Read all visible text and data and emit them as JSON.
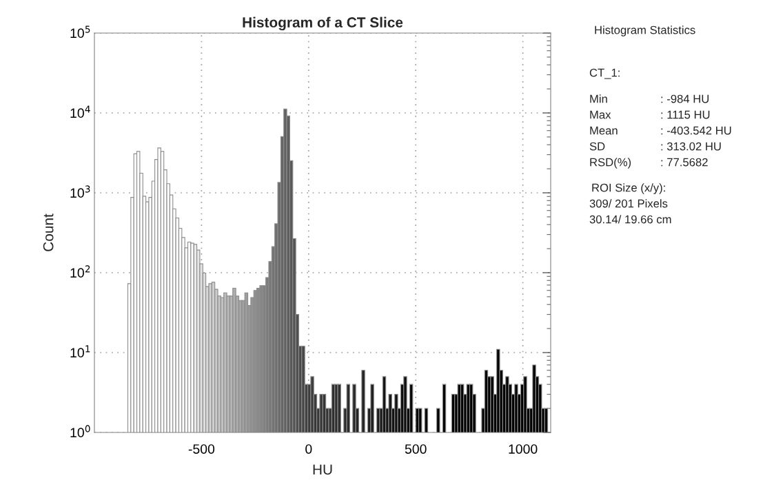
{
  "chart_data": {
    "type": "histogram",
    "title": "Histogram of a CT Slice",
    "xlabel": "HU",
    "ylabel": "Count",
    "bins": [
      -844,
      -830,
      -816,
      -802,
      -788,
      -774,
      -760,
      -746,
      -732,
      -718,
      -704,
      -690,
      -676,
      -662,
      -648,
      -634,
      -620,
      -606,
      -592,
      -578,
      -564,
      -550,
      -536,
      -522,
      -508,
      -494,
      -480,
      -466,
      -452,
      -438,
      -424,
      -410,
      -396,
      -382,
      -368,
      -354,
      -340,
      -326,
      -312,
      -298,
      -284,
      -270,
      -256,
      -242,
      -228,
      -214,
      -200,
      -186,
      -172,
      -158,
      -144,
      -130,
      -116,
      -102,
      -88,
      -74,
      -60,
      -46,
      -32,
      -18,
      -4,
      10,
      24,
      38,
      52,
      66,
      80,
      94,
      108,
      122,
      136,
      150,
      164,
      178,
      192,
      206,
      220,
      234,
      248,
      262,
      276,
      290,
      304,
      318,
      332,
      346,
      360,
      374,
      388,
      402,
      416,
      430,
      444,
      458,
      472,
      486,
      500,
      514,
      528,
      542,
      556,
      570,
      584,
      598,
      612,
      626,
      640,
      654,
      668,
      682,
      696,
      710,
      724,
      738,
      752,
      766,
      780,
      794,
      808,
      822,
      836,
      850,
      864,
      878,
      892,
      906,
      920,
      934,
      948,
      962,
      976,
      990,
      1004,
      1018,
      1032,
      1046,
      1060,
      1074,
      1088,
      1102,
      1116
    ],
    "values": [
      73,
      877,
      3080,
      3300,
      1760,
      908,
      770,
      877,
      1400,
      2610,
      3640,
      3300,
      1940,
      1300,
      940,
      631,
      484,
      360,
      276,
      205,
      242,
      234,
      226,
      192,
      129,
      99,
      67,
      73,
      76,
      62,
      51,
      49,
      56,
      51,
      51,
      64,
      51,
      45,
      45,
      56,
      39,
      49,
      60,
      64,
      69,
      69,
      87,
      138,
      212,
      410,
      1350,
      5070,
      11200,
      9180,
      2530,
      267,
      30,
      12,
      12,
      4,
      4,
      5,
      3,
      2,
      3,
      3,
      2,
      2,
      4,
      4,
      4,
      null,
      2,
      4,
      null,
      4,
      2,
      null,
      6,
      null,
      2,
      4,
      null,
      2,
      2,
      5,
      2,
      3,
      2,
      3,
      2,
      4,
      5,
      2,
      4,
      null,
      2,
      2,
      null,
      2,
      null,
      null,
      null,
      2,
      null,
      4,
      null,
      null,
      3,
      3,
      4,
      4,
      3,
      4,
      4,
      3,
      null,
      null,
      2,
      6,
      5,
      5,
      3,
      11,
      6,
      4,
      5,
      4,
      3,
      4,
      3,
      4,
      5,
      2,
      2,
      7,
      5,
      4,
      2,
      2
    ],
    "colors": [
      "#ffffff",
      "#ffffff",
      "#ffffff",
      "#ffffff",
      "#ffffff",
      "#ffffff",
      "#ffffff",
      "#ffffff",
      "#ffffff",
      "#ffffff",
      "#ffffff",
      "#ffffff",
      "#ffffff",
      "#ffffff",
      "#ffffff",
      "#ffffff",
      "#ffffff",
      "#ffffff",
      "#ffffff",
      "#ffffff",
      "#ffffff",
      "#ffffff",
      "#ebebeb",
      "#e6e6e6",
      "#e2e2e2",
      "#dddddd",
      "#d9d9d9",
      "#d4d4d4",
      "#cfcfcf",
      "#cbcbcb",
      "#c6c6c6",
      "#c2c2c2",
      "#bdbdbd",
      "#b8b8b8",
      "#b4b4b4",
      "#afafaf",
      "#ababab",
      "#a6a6a6",
      "#a1a1a1",
      "#9d9d9d",
      "#989898",
      "#949494",
      "#8f8f8f",
      "#8a8a8a",
      "#868686",
      "#818181",
      "#7d7d7d",
      "#787878",
      "#737373",
      "#6f6f6f",
      "#6a6a6a",
      "#666666",
      "#616161",
      "#5c5c5c",
      "#585858",
      "#535353",
      "#4f4f4f",
      "#4a4a4a",
      "#454545",
      "#414141",
      "#3c3c3c",
      "#3a3a3a",
      "#393939",
      "#373737",
      "#363636",
      "#343434",
      "#333333",
      "#323232",
      "#303030",
      "#2e2e2e",
      "#2d2d2d",
      "#2c2c2c",
      "#2a2a2a",
      "#282828",
      "#272727",
      "#262626",
      "#242424",
      "#222222",
      "#212121",
      "#202020",
      "#1e1e1e",
      "#1c1c1c",
      "#1b1b1b",
      "#1a1a1a",
      "#181818",
      "#161616",
      "#151515",
      "#141414",
      "#121212",
      "#101010",
      "#0f0f0f",
      "#0e0e0e",
      "#0c0c0c",
      "#0a0a0a",
      "#090909",
      "#080808",
      "#060606",
      "#040404",
      "#030303",
      "#020202",
      "#000000",
      "#000000",
      "#000000",
      "#000000",
      "#000000",
      "#000000",
      "#000000",
      "#000000",
      "#000000",
      "#000000",
      "#000000",
      "#000000",
      "#000000",
      "#000000",
      "#000000",
      "#000000",
      "#000000",
      "#000000",
      "#000000",
      "#000000",
      "#000000",
      "#000000",
      "#000000",
      "#000000",
      "#000000",
      "#000000",
      "#000000",
      "#000000",
      "#000000",
      "#000000",
      "#000000",
      "#000000",
      "#000000",
      "#000000",
      "#000000",
      "#000000",
      "#000000",
      "#000000",
      "#000000",
      "#000000"
    ],
    "color": "#8c8c8c",
    "log": "y",
    "xlim": [
      -1000,
      1130
    ],
    "xticks": [
      -500,
      0,
      500,
      1000
    ],
    "ylim": [
      1,
      100000
    ],
    "yticks": [
      {
        "value": 1,
        "label": "10$^{0}$"
      },
      {
        "value": 10,
        "label": "10$^{1}$"
      },
      {
        "value": 100,
        "label": "10$^{2}$"
      },
      {
        "value": 1000,
        "label": "10$^{3}$"
      },
      {
        "value": 10000,
        "label": "10$^{4}$"
      },
      {
        "value": 100000,
        "label": "10$^{5}$"
      }
    ],
    "grid": true,
    "annotations": [
      "Histogram Statistics",
      "CT_1:",
      "Min",
      ": -984 HU",
      "Max",
      ": 1115 HU",
      "Mean",
      ": -403.542 HU",
      "SD",
      ": 313.02 HU",
      "RSD(%)",
      ": 77.5682",
      "ROI Size (x/y):",
      "309/ 201 Pixels",
      "30.14/ 19.66 cm"
    ]
  }
}
